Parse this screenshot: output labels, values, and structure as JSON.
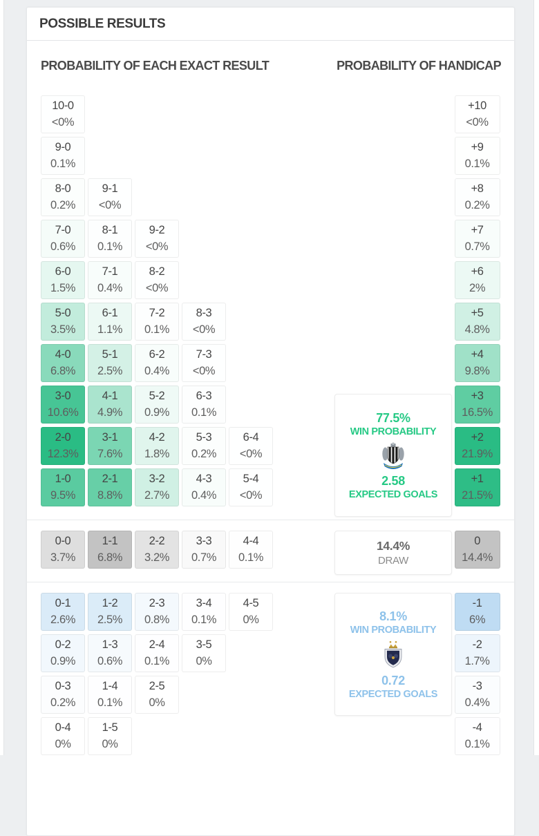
{
  "panel": {
    "title": "POSSIBLE RESULTS",
    "left_header": "PROBABILITY OF EACH EXACT RESULT",
    "right_header": "PROBABILITY OF HANDICAP"
  },
  "colors": {
    "home_base": "#2abc84",
    "draw_base": "#c3c3c3",
    "away_base": "#bfdcf3",
    "home_text": "#26c985",
    "away_text": "#8ec2ea",
    "draw_text": "#686868"
  },
  "grid": {
    "home_rows": [
      [
        {
          "score": "10-0",
          "pct": "<0%",
          "v": 0.04
        }
      ],
      [
        {
          "score": "9-0",
          "pct": "0.1%",
          "v": 0.1
        }
      ],
      [
        {
          "score": "8-0",
          "pct": "0.2%",
          "v": 0.2
        },
        {
          "score": "9-1",
          "pct": "<0%",
          "v": 0.04
        }
      ],
      [
        {
          "score": "7-0",
          "pct": "0.6%",
          "v": 0.6
        },
        {
          "score": "8-1",
          "pct": "0.1%",
          "v": 0.1
        },
        {
          "score": "9-2",
          "pct": "<0%",
          "v": 0.04
        }
      ],
      [
        {
          "score": "6-0",
          "pct": "1.5%",
          "v": 1.5
        },
        {
          "score": "7-1",
          "pct": "0.4%",
          "v": 0.4
        },
        {
          "score": "8-2",
          "pct": "<0%",
          "v": 0.04
        }
      ],
      [
        {
          "score": "5-0",
          "pct": "3.5%",
          "v": 3.5
        },
        {
          "score": "6-1",
          "pct": "1.1%",
          "v": 1.1
        },
        {
          "score": "7-2",
          "pct": "0.1%",
          "v": 0.1
        },
        {
          "score": "8-3",
          "pct": "<0%",
          "v": 0.04
        }
      ],
      [
        {
          "score": "4-0",
          "pct": "6.8%",
          "v": 6.8
        },
        {
          "score": "5-1",
          "pct": "2.5%",
          "v": 2.5
        },
        {
          "score": "6-2",
          "pct": "0.4%",
          "v": 0.4
        },
        {
          "score": "7-3",
          "pct": "<0%",
          "v": 0.04
        }
      ],
      [
        {
          "score": "3-0",
          "pct": "10.6%",
          "v": 10.6
        },
        {
          "score": "4-1",
          "pct": "4.9%",
          "v": 4.9
        },
        {
          "score": "5-2",
          "pct": "0.9%",
          "v": 0.9
        },
        {
          "score": "6-3",
          "pct": "0.1%",
          "v": 0.1
        }
      ],
      [
        {
          "score": "2-0",
          "pct": "12.3%",
          "v": 12.3
        },
        {
          "score": "3-1",
          "pct": "7.6%",
          "v": 7.6
        },
        {
          "score": "4-2",
          "pct": "1.8%",
          "v": 1.8
        },
        {
          "score": "5-3",
          "pct": "0.2%",
          "v": 0.2
        },
        {
          "score": "6-4",
          "pct": "<0%",
          "v": 0.04
        }
      ],
      [
        {
          "score": "1-0",
          "pct": "9.5%",
          "v": 9.5
        },
        {
          "score": "2-1",
          "pct": "8.8%",
          "v": 8.8
        },
        {
          "score": "3-2",
          "pct": "2.7%",
          "v": 2.7
        },
        {
          "score": "4-3",
          "pct": "0.4%",
          "v": 0.4
        },
        {
          "score": "5-4",
          "pct": "<0%",
          "v": 0.04
        }
      ]
    ],
    "draw_row": [
      {
        "score": "0-0",
        "pct": "3.7%",
        "v": 3.7
      },
      {
        "score": "1-1",
        "pct": "6.8%",
        "v": 6.8
      },
      {
        "score": "2-2",
        "pct": "3.2%",
        "v": 3.2
      },
      {
        "score": "3-3",
        "pct": "0.7%",
        "v": 0.7
      },
      {
        "score": "4-4",
        "pct": "0.1%",
        "v": 0.1
      }
    ],
    "away_rows": [
      [
        {
          "score": "0-1",
          "pct": "2.6%",
          "v": 2.6
        },
        {
          "score": "1-2",
          "pct": "2.5%",
          "v": 2.5
        },
        {
          "score": "2-3",
          "pct": "0.8%",
          "v": 0.8
        },
        {
          "score": "3-4",
          "pct": "0.1%",
          "v": 0.1
        },
        {
          "score": "4-5",
          "pct": "0%",
          "v": 0
        }
      ],
      [
        {
          "score": "0-2",
          "pct": "0.9%",
          "v": 0.9
        },
        {
          "score": "1-3",
          "pct": "0.6%",
          "v": 0.6
        },
        {
          "score": "2-4",
          "pct": "0.1%",
          "v": 0.1
        },
        {
          "score": "3-5",
          "pct": "0%",
          "v": 0
        }
      ],
      [
        {
          "score": "0-3",
          "pct": "0.2%",
          "v": 0.2
        },
        {
          "score": "1-4",
          "pct": "0.1%",
          "v": 0.1
        },
        {
          "score": "2-5",
          "pct": "0%",
          "v": 0
        }
      ],
      [
        {
          "score": "0-4",
          "pct": "0%",
          "v": 0
        },
        {
          "score": "1-5",
          "pct": "0%",
          "v": 0
        }
      ]
    ]
  },
  "handicap": {
    "home": [
      {
        "line": "+10",
        "pct": "<0%",
        "v": 0.04
      },
      {
        "line": "+9",
        "pct": "0.1%",
        "v": 0.1
      },
      {
        "line": "+8",
        "pct": "0.2%",
        "v": 0.2
      },
      {
        "line": "+7",
        "pct": "0.7%",
        "v": 0.7
      },
      {
        "line": "+6",
        "pct": "2%",
        "v": 2
      },
      {
        "line": "+5",
        "pct": "4.8%",
        "v": 4.8
      },
      {
        "line": "+4",
        "pct": "9.8%",
        "v": 9.8
      },
      {
        "line": "+3",
        "pct": "16.5%",
        "v": 16.5
      },
      {
        "line": "+2",
        "pct": "21.9%",
        "v": 21.9
      },
      {
        "line": "+1",
        "pct": "21.5%",
        "v": 21.5
      }
    ],
    "draw": [
      {
        "line": "0",
        "pct": "14.4%",
        "v": 14.4
      }
    ],
    "away": [
      {
        "line": "-1",
        "pct": "6%",
        "v": 6
      },
      {
        "line": "-2",
        "pct": "1.7%",
        "v": 1.7
      },
      {
        "line": "-3",
        "pct": "0.4%",
        "v": 0.4
      },
      {
        "line": "-4",
        "pct": "0.1%",
        "v": 0.1
      }
    ]
  },
  "home_summary": {
    "win_pct": "77.5%",
    "win_label": "WIN PROBABILITY",
    "team_icon": "newcastle-united-crest",
    "expected": "2.58",
    "expected_label": "EXPECTED GOALS"
  },
  "draw_summary": {
    "pct": "14.4%",
    "label": "DRAW"
  },
  "away_summary": {
    "win_pct": "8.1%",
    "win_label": "WIN PROBABILITY",
    "team_icon": "qarabag-crest",
    "expected": "0.72",
    "expected_label": "EXPECTED GOALS"
  }
}
